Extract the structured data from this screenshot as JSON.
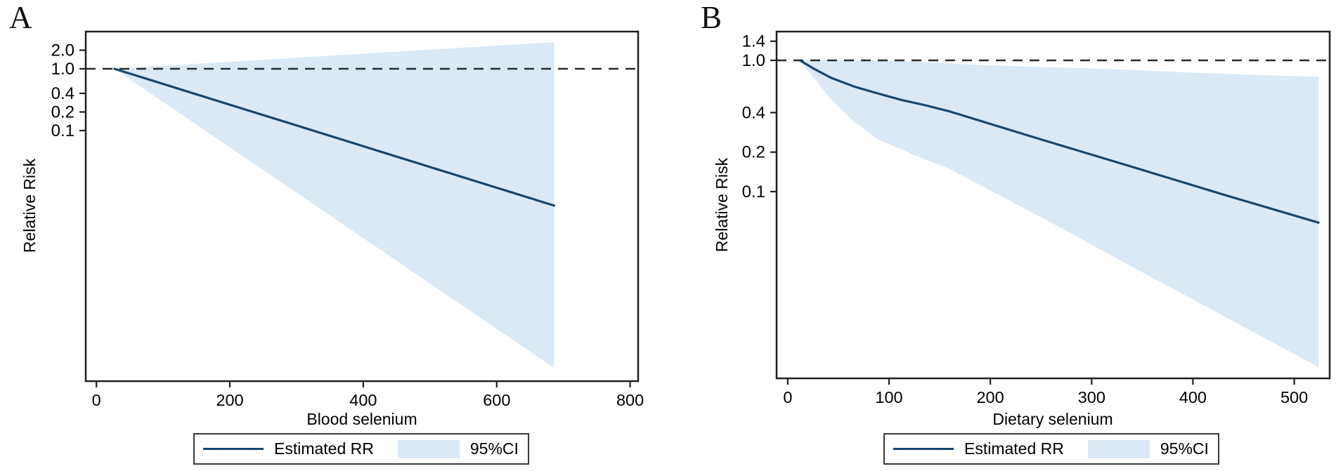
{
  "colors": {
    "rr_line": "#17466e",
    "ci_band": "#dbe9f6",
    "frame": "#1f1f1f",
    "reference_line": "#2a2a2a",
    "text": "#000000",
    "legend_border": "#3a3a3a",
    "background": "#ffffff"
  },
  "chart_data": [
    {
      "type": "line",
      "panel_label": "A",
      "xlabel": "Blood selenium",
      "ylabel": "Relative Risk",
      "yscale": "log",
      "xlim": [
        -16,
        812
      ],
      "ylim": [
        8.8e-06,
        4.0
      ],
      "xticks": [
        0,
        200,
        400,
        600,
        800
      ],
      "yticks": [
        "2.0",
        "1.0",
        "0.4",
        "0.2",
        "0.1"
      ],
      "reference_line": 1.0,
      "legend": {
        "line": "Estimated RR",
        "band": "95%CI"
      },
      "series": [
        {
          "name": "Estimated RR",
          "role": "line",
          "points": [
            [
              27,
              1.0
            ],
            [
              686,
              0.0061
            ]
          ]
        },
        {
          "name": "95%CI upper bound",
          "role": "band_upper",
          "points": [
            [
              27,
              1.0
            ],
            [
              686,
              2.7
            ]
          ]
        },
        {
          "name": "95%CI lower bound",
          "role": "band_lower",
          "points": [
            [
              27,
              1.0
            ],
            [
              686,
              1.44e-05
            ]
          ]
        }
      ]
    },
    {
      "type": "line",
      "panel_label": "B",
      "xlabel": "Dietary selenium",
      "ylabel": "Relative Risk",
      "yscale": "log",
      "xlim": [
        -11,
        535
      ],
      "ylim": [
        0.00378,
        1.657
      ],
      "xticks": [
        0,
        100,
        200,
        300,
        400,
        500
      ],
      "yticks": [
        "1.4",
        "1.0",
        "0.4",
        "0.2",
        "0.1"
      ],
      "reference_line": 1.0,
      "legend": {
        "line": "Estimated RR",
        "band": "95%CI"
      },
      "series": [
        {
          "name": "Estimated RR",
          "role": "line",
          "points": [
            [
              12,
              1.0
            ],
            [
              25,
              0.87
            ],
            [
              43,
              0.735
            ],
            [
              66,
              0.63
            ],
            [
              89,
              0.56
            ],
            [
              112,
              0.5
            ],
            [
              136,
              0.455
            ],
            [
              159,
              0.41
            ],
            [
              250,
              0.25
            ],
            [
              343,
              0.152
            ],
            [
              430,
              0.095
            ],
            [
              524,
              0.058
            ]
          ]
        },
        {
          "name": "95%CI upper bound",
          "role": "band_upper",
          "points": [
            [
              12,
              1.0
            ],
            [
              60,
              1.0
            ],
            [
              112,
              0.99
            ],
            [
              180,
              0.93
            ],
            [
              250,
              0.89
            ],
            [
              297,
              0.87
            ],
            [
              350,
              0.84
            ],
            [
              410,
              0.8
            ],
            [
              470,
              0.77
            ],
            [
              524,
              0.75
            ]
          ]
        },
        {
          "name": "95%CI lower bound",
          "role": "band_lower",
          "points": [
            [
              12,
              1.0
            ],
            [
              43,
              0.5
            ],
            [
              66,
              0.34
            ],
            [
              89,
              0.25
            ],
            [
              112,
              0.21
            ],
            [
              136,
              0.175
            ],
            [
              159,
              0.15
            ],
            [
              250,
              0.064
            ],
            [
              343,
              0.026
            ],
            [
              418,
              0.0127
            ],
            [
              524,
              0.0046
            ]
          ]
        }
      ]
    }
  ]
}
